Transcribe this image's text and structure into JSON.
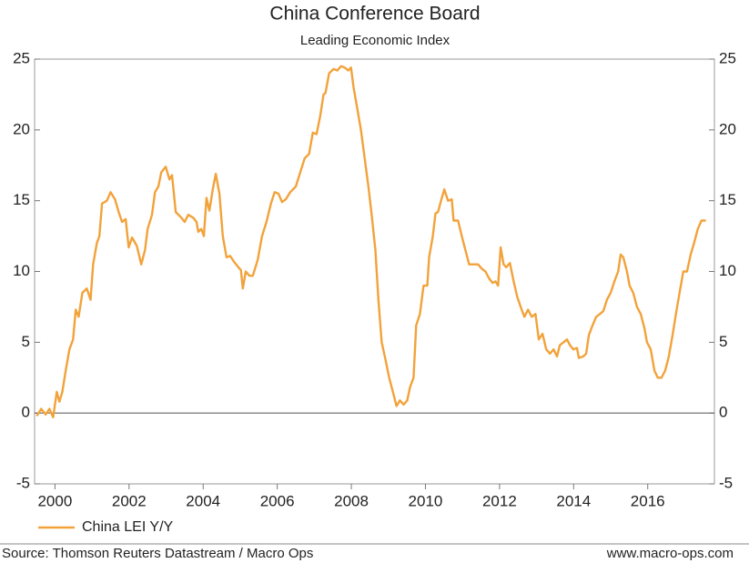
{
  "chart_data": {
    "type": "line",
    "title": "China Conference Board",
    "subtitle": "Leading Economic Index",
    "source": "Source: Thomson Reuters Datastream / Macro Ops",
    "website": "www.macro-ops.com",
    "xlim": [
      1999.45,
      2017.8
    ],
    "xticks": [
      2000,
      2002,
      2004,
      2006,
      2008,
      2010,
      2012,
      2014,
      2016
    ],
    "ylim": [
      -5,
      25
    ],
    "yticks": [
      -5,
      0,
      5,
      10,
      15,
      20,
      25
    ],
    "legend": "bottom-left",
    "series": [
      {
        "name": "China LEI Y/Y",
        "color": "#f2a23a",
        "x": [
          1999.51,
          1999.63,
          1999.75,
          1999.85,
          1999.95,
          2000.05,
          2000.12,
          2000.2,
          2000.29,
          2000.39,
          2000.49,
          2000.56,
          2000.64,
          2000.74,
          2000.86,
          2000.96,
          2001.03,
          2001.13,
          2001.2,
          2001.27,
          2001.4,
          2001.5,
          2001.62,
          2001.72,
          2001.81,
          2001.91,
          2001.99,
          2002.08,
          2002.21,
          2002.33,
          2002.43,
          2002.5,
          2002.62,
          2002.7,
          2002.79,
          2002.87,
          2002.99,
          2003.09,
          2003.16,
          2003.26,
          2003.41,
          2003.5,
          2003.6,
          2003.73,
          2003.82,
          2003.87,
          2003.95,
          2004.02,
          2004.09,
          2004.17,
          2004.26,
          2004.34,
          2004.44,
          2004.53,
          2004.63,
          2004.73,
          2004.83,
          2004.95,
          2005.02,
          2005.07,
          2005.15,
          2005.25,
          2005.34,
          2005.47,
          2005.59,
          2005.71,
          2005.83,
          2005.93,
          2006.03,
          2006.13,
          2006.23,
          2006.35,
          2006.5,
          2006.62,
          2006.74,
          2006.86,
          2006.96,
          2007.06,
          2007.16,
          2007.25,
          2007.3,
          2007.4,
          2007.52,
          2007.62,
          2007.72,
          2007.82,
          2007.92,
          2007.99,
          2008.06,
          2008.16,
          2008.26,
          2008.36,
          2008.46,
          2008.55,
          2008.65,
          2008.73,
          2008.82,
          2008.92,
          2009.02,
          2009.12,
          2009.22,
          2009.31,
          2009.41,
          2009.51,
          2009.58,
          2009.68,
          2009.75,
          2009.85,
          2009.95,
          2010.05,
          2010.1,
          2010.2,
          2010.27,
          2010.34,
          2010.42,
          2010.51,
          2010.61,
          2010.71,
          2010.76,
          2010.88,
          2010.98,
          2011.08,
          2011.18,
          2011.27,
          2011.42,
          2011.52,
          2011.62,
          2011.72,
          2011.81,
          2011.89,
          2011.96,
          2012.03,
          2012.11,
          2012.18,
          2012.28,
          2012.38,
          2012.48,
          2012.57,
          2012.67,
          2012.77,
          2012.87,
          2012.97,
          2013.06,
          2013.16,
          2013.26,
          2013.36,
          2013.46,
          2013.55,
          2013.63,
          2013.73,
          2013.82,
          2013.9,
          2013.99,
          2014.09,
          2014.14,
          2014.26,
          2014.34,
          2014.41,
          2014.51,
          2014.61,
          2014.71,
          2014.8,
          2014.9,
          2015.0,
          2015.1,
          2015.2,
          2015.27,
          2015.34,
          2015.44,
          2015.51,
          2015.61,
          2015.71,
          2015.81,
          2015.91,
          2015.98,
          2016.08,
          2016.18,
          2016.27,
          2016.37,
          2016.47,
          2016.57,
          2016.67,
          2016.76,
          2016.86,
          2016.96,
          2017.06,
          2017.16,
          2017.25,
          2017.35,
          2017.45,
          2017.57
        ],
        "values": [
          -0.2,
          0.3,
          -0.1,
          0.3,
          -0.3,
          1.5,
          0.8,
          1.5,
          3,
          4.5,
          5.2,
          7.3,
          6.8,
          8.5,
          8.8,
          8,
          10.5,
          12,
          12.5,
          14.8,
          15,
          15.6,
          15.1,
          14.2,
          13.5,
          13.7,
          11.7,
          12.4,
          11.8,
          10.5,
          11.5,
          13,
          14,
          15.6,
          16,
          17,
          17.4,
          16.5,
          16.8,
          14.2,
          13.8,
          13.5,
          14,
          13.8,
          13.5,
          12.8,
          13,
          12.5,
          15.2,
          14.3,
          15.8,
          16.9,
          15.5,
          12.5,
          11,
          11.1,
          10.7,
          10.3,
          10.1,
          8.8,
          10,
          9.7,
          9.7,
          10.8,
          12.5,
          13.5,
          14.8,
          15.6,
          15.5,
          14.9,
          15.1,
          15.6,
          16,
          17,
          18,
          18.3,
          19.8,
          19.7,
          21,
          22.5,
          22.6,
          24,
          24.3,
          24.2,
          24.5,
          24.4,
          24.2,
          24.4,
          23,
          21.5,
          20,
          18,
          16,
          14,
          11.5,
          8,
          5,
          3.8,
          2.5,
          1.5,
          0.5,
          0.9,
          0.6,
          0.9,
          1.8,
          2.5,
          6.2,
          7,
          9,
          9,
          11,
          12.5,
          14.1,
          14.2,
          15,
          15.8,
          15,
          15.1,
          13.6,
          13.6,
          12.5,
          11.5,
          10.5,
          10.5,
          10.5,
          10.2,
          10,
          9.5,
          9.2,
          9.3,
          9,
          11.7,
          10.5,
          10.3,
          10.6,
          9.3,
          8.2,
          7.5,
          6.8,
          7.3,
          6.8,
          7,
          5.2,
          5.6,
          4.5,
          4.2,
          4.5,
          4,
          4.8,
          5,
          5.2,
          4.8,
          4.5,
          4.6,
          3.9,
          4,
          4.2,
          5.5,
          6.2,
          6.8,
          7,
          7.2,
          8,
          8.5,
          9.3,
          10,
          11.2,
          11,
          10,
          9,
          8.5,
          7.5,
          7,
          6,
          5,
          4.5,
          3,
          2.5,
          2.5,
          3,
          4,
          5.5,
          7,
          8.5,
          10,
          10,
          11.2,
          12,
          13,
          13.6,
          13.6
        ]
      }
    ]
  }
}
